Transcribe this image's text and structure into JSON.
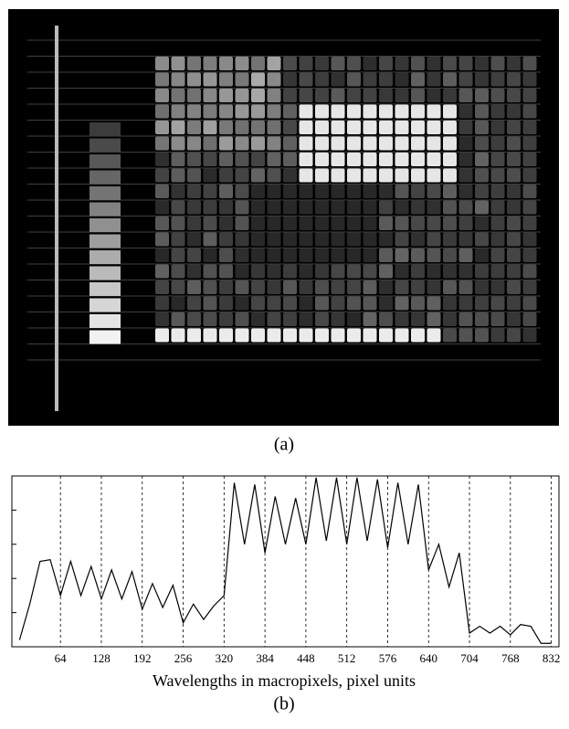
{
  "figure_a": {
    "caption": "(a)"
  },
  "chart_data": {
    "type": "line",
    "caption": "(b)",
    "x_label": "Wavelengths in macropixels, pixel units",
    "x": [
      0,
      16,
      32,
      48,
      64,
      80,
      96,
      112,
      128,
      144,
      160,
      176,
      192,
      208,
      224,
      240,
      256,
      272,
      288,
      304,
      320,
      336,
      352,
      368,
      384,
      400,
      416,
      432,
      448,
      464,
      480,
      496,
      512,
      528,
      544,
      560,
      576,
      592,
      608,
      624,
      640,
      656,
      672,
      688,
      704,
      720,
      736,
      752,
      768,
      784,
      800,
      816,
      832
    ],
    "series": [
      {
        "color": "#000000",
        "values": [
          0.04,
          0.25,
          0.5,
          0.51,
          0.3,
          0.5,
          0.3,
          0.47,
          0.28,
          0.45,
          0.28,
          0.44,
          0.22,
          0.37,
          0.23,
          0.36,
          0.14,
          0.25,
          0.16,
          0.24,
          0.3,
          0.96,
          0.6,
          0.95,
          0.55,
          0.88,
          0.6,
          0.87,
          0.6,
          0.99,
          0.62,
          0.99,
          0.6,
          0.99,
          0.62,
          0.98,
          0.58,
          0.96,
          0.6,
          0.95,
          0.45,
          0.6,
          0.35,
          0.55,
          0.08,
          0.12,
          0.08,
          0.12,
          0.07,
          0.13,
          0.12,
          0.02,
          0.02
        ]
      }
    ],
    "xlim": [
      -12,
      844
    ],
    "ylim": [
      0,
      1
    ],
    "xticks": [
      64,
      128,
      192,
      256,
      320,
      384,
      448,
      512,
      576,
      640,
      704,
      768,
      832
    ],
    "grid": true
  }
}
